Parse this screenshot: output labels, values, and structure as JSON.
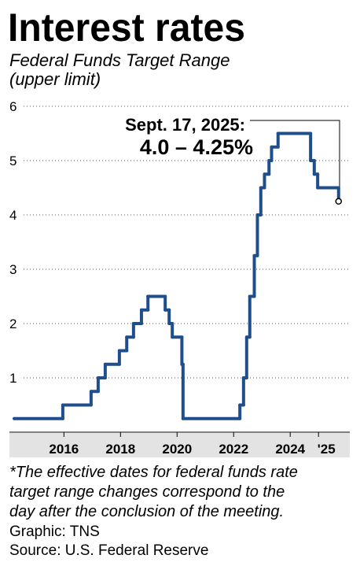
{
  "chart_data": {
    "type": "line",
    "step": true,
    "title": "Interest rates",
    "subtitle": [
      "Federal Funds Target Range",
      "(upper limit)"
    ],
    "x": [
      2014.24,
      2015.96,
      2016.96,
      2017.21,
      2017.46,
      2017.96,
      2018.22,
      2018.46,
      2018.74,
      2018.97,
      2019.58,
      2019.72,
      2019.83,
      2020.17,
      2020.21,
      2022.22,
      2022.35,
      2022.46,
      2022.57,
      2022.73,
      2022.84,
      2022.96,
      2023.09,
      2023.25,
      2023.34,
      2023.57,
      2024.72,
      2024.85,
      2024.97,
      2025.71
    ],
    "series": [
      {
        "name": "Federal Funds Target Range (upper limit)",
        "color": "#1f4e8c",
        "values": [
          0.25,
          0.5,
          0.75,
          1.0,
          1.25,
          1.5,
          1.75,
          2.0,
          2.25,
          2.5,
          2.25,
          2.0,
          1.75,
          1.25,
          0.25,
          0.5,
          1.0,
          1.75,
          2.5,
          3.25,
          4.0,
          4.5,
          4.75,
          5.0,
          5.25,
          5.5,
          5.0,
          4.75,
          4.5,
          4.25
        ]
      }
    ],
    "xlim": [
      2014.24,
      2026.3
    ],
    "xticks": [
      2016,
      2018,
      2020,
      2022,
      2024,
      {
        "value": 2025,
        "label": "'25"
      }
    ],
    "ylim": [
      0,
      6
    ],
    "yticks": [
      1,
      2,
      3,
      4,
      5,
      6
    ],
    "grid": true,
    "annotation": {
      "date": "Sept. 17, 2025:",
      "text": "4.0 – 4.25%"
    },
    "footnote": [
      "*The effective dates for federal funds rate",
      "target range changes correspond to the",
      "day after the conclusion of the meeting."
    ],
    "credit": "Graphic: TNS",
    "source": "Source: U.S. Federal Reserve"
  }
}
